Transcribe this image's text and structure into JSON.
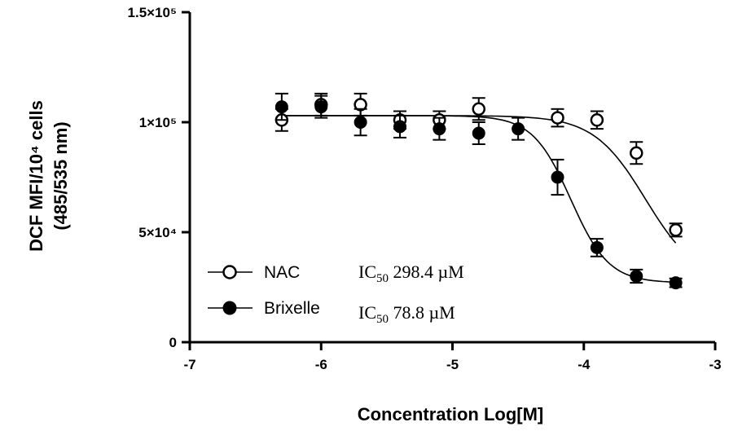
{
  "chart_data": {
    "type": "scatter",
    "xlabel": "Concentration Log[M]",
    "ylabel_line1": "DCF MFI/10⁴ cells",
    "ylabel_line2": "(485/535 nm)",
    "xlim": [
      -7,
      -3
    ],
    "ylim": [
      0,
      150000
    ],
    "x_ticks": [
      {
        "value": -7,
        "label": "-7"
      },
      {
        "value": -6,
        "label": "-6"
      },
      {
        "value": -5,
        "label": "-5"
      },
      {
        "value": -4,
        "label": "-4"
      },
      {
        "value": -3,
        "label": "-3"
      }
    ],
    "y_ticks": [
      {
        "value": 0,
        "label": "0"
      },
      {
        "value": 50000,
        "label": "5×10⁴"
      },
      {
        "value": 100000,
        "label": "1×10⁵"
      },
      {
        "value": 150000,
        "label": "1.5×10⁵"
      }
    ],
    "series": [
      {
        "name": "NAC",
        "marker": "open-circle",
        "ic50_label": "IC",
        "ic50_sub": "50",
        "ic50_value": "298.4 µM",
        "fit": {
          "top": 103000,
          "bottom": 27000,
          "logIC50": -3.53,
          "hill": 2.2
        },
        "points": [
          {
            "x": -6.3,
            "y": 101000,
            "err": 5000
          },
          {
            "x": -6.0,
            "y": 108000,
            "err": 5000
          },
          {
            "x": -5.7,
            "y": 108000,
            "err": 5000
          },
          {
            "x": -5.4,
            "y": 101000,
            "err": 4000
          },
          {
            "x": -5.1,
            "y": 101000,
            "err": 4000
          },
          {
            "x": -4.8,
            "y": 106000,
            "err": 5000
          },
          {
            "x": -4.2,
            "y": 102000,
            "err": 4000
          },
          {
            "x": -3.9,
            "y": 101000,
            "err": 4000
          },
          {
            "x": -3.6,
            "y": 86000,
            "err": 5000
          },
          {
            "x": -3.3,
            "y": 51000,
            "err": 3000
          }
        ]
      },
      {
        "name": "Brixelle",
        "marker": "filled-circle",
        "ic50_label": "IC",
        "ic50_sub": "50",
        "ic50_value": "78.8 µM",
        "fit": {
          "top": 103000,
          "bottom": 27000,
          "logIC50": -4.1,
          "hill": 3.0
        },
        "points": [
          {
            "x": -6.3,
            "y": 107000,
            "err": 6000
          },
          {
            "x": -6.0,
            "y": 107000,
            "err": 5000
          },
          {
            "x": -5.7,
            "y": 100000,
            "err": 6000
          },
          {
            "x": -5.4,
            "y": 98000,
            "err": 5000
          },
          {
            "x": -5.1,
            "y": 97000,
            "err": 5000
          },
          {
            "x": -4.8,
            "y": 95000,
            "err": 5000
          },
          {
            "x": -4.5,
            "y": 97000,
            "err": 5000
          },
          {
            "x": -4.2,
            "y": 75000,
            "err": 8000
          },
          {
            "x": -3.9,
            "y": 43000,
            "err": 4000
          },
          {
            "x": -3.6,
            "y": 30000,
            "err": 3000
          },
          {
            "x": -3.3,
            "y": 27000,
            "err": 2000
          }
        ]
      }
    ]
  }
}
